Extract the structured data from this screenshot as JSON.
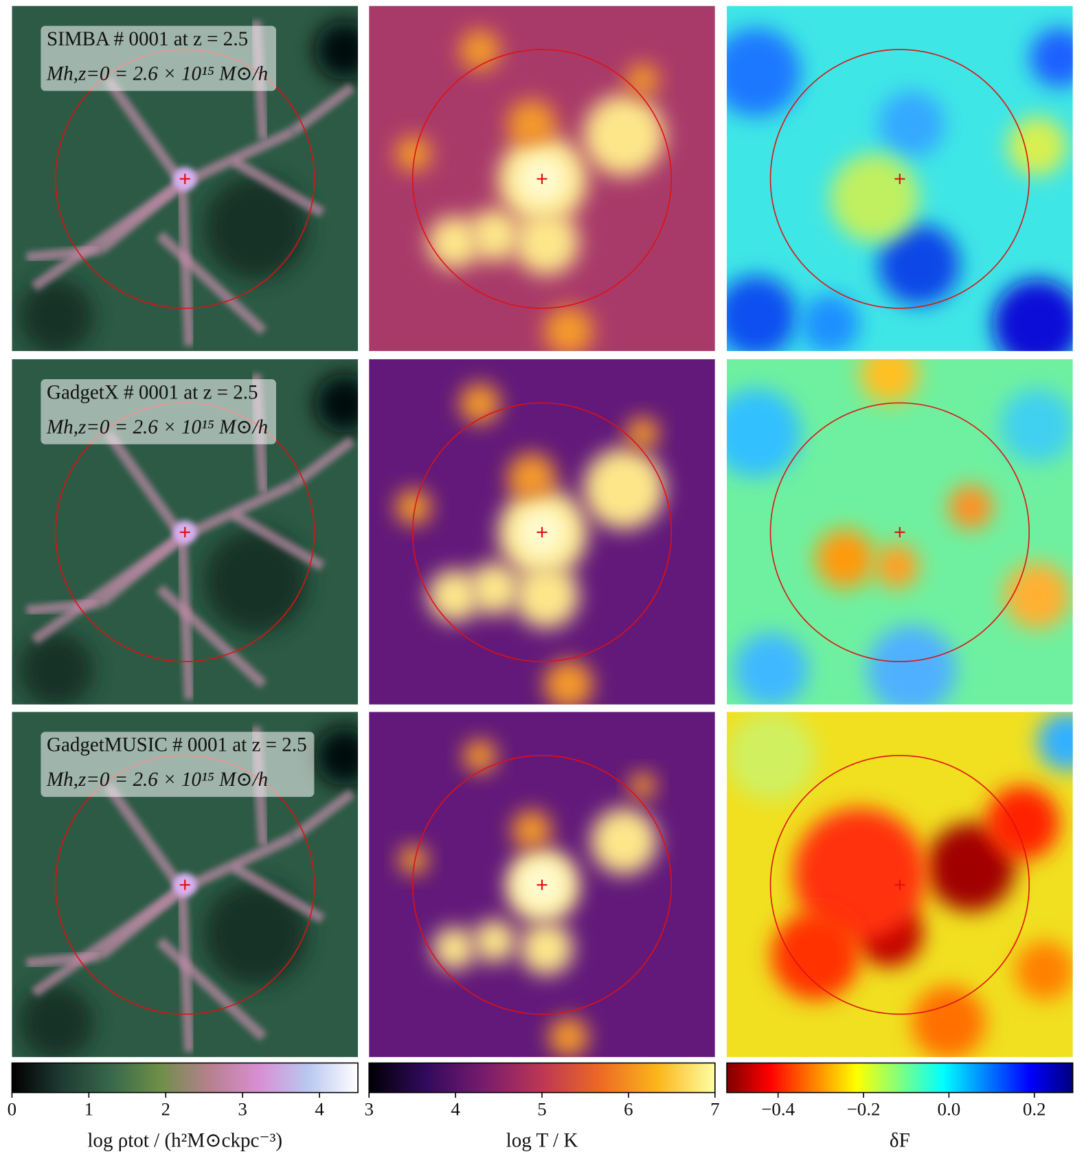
{
  "panels": {
    "rows": [
      {
        "label": "SIMBA # 0001 at z = 2.5",
        "mass": "Mh,z=0 = 2.6 × 10¹⁵ M⊙/h"
      },
      {
        "label": "GadgetX # 0001 at z = 2.5",
        "mass": "Mh,z=0 = 2.6 × 10¹⁵ M⊙/h"
      },
      {
        "label": "GadgetMUSIC # 0001 at z = 2.5",
        "mass": "Mh,z=0 = 2.6 × 10¹⁵ M⊙/h"
      }
    ]
  },
  "colorbars": [
    {
      "label": "log ρtot / (h²M⊙ckpc⁻³)",
      "lim": [
        0,
        4.5
      ],
      "ticks": [
        0,
        1,
        2,
        3,
        4
      ],
      "colors": [
        "#000000",
        "#1f3a33",
        "#37684a",
        "#6e8f48",
        "#b7808f",
        "#d88fd2",
        "#b9c8f0",
        "#ffffff"
      ]
    },
    {
      "label": "log T / K",
      "lim": [
        3,
        7
      ],
      "ticks": [
        3,
        4,
        5,
        6,
        7
      ],
      "colors": [
        "#000004",
        "#320a5e",
        "#781c6d",
        "#bc3754",
        "#ed6925",
        "#fbb61a",
        "#fcffa4"
      ]
    },
    {
      "label": "δF",
      "lim": [
        -0.52,
        0.29
      ],
      "ticks": [
        {
          "value": -0.4,
          "label": "−0.4"
        },
        {
          "value": -0.2,
          "label": "−0.2"
        },
        {
          "value": 0.0,
          "label": "0.0"
        },
        0.2
      ],
      "colors": [
        "#7f0000",
        "#ff0000",
        "#ff8000",
        "#ffff00",
        "#80ff80",
        "#00ffff",
        "#0080ff",
        "#0000ff",
        "#00007f"
      ]
    }
  ]
}
